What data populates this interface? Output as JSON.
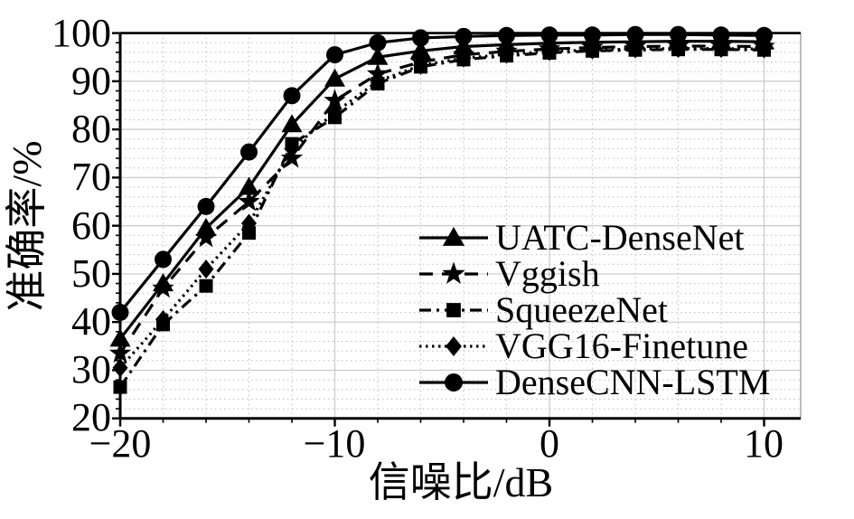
{
  "figure": {
    "background": "#ffffff",
    "axis_color": "#000000",
    "grid_major_color": "#c9c9c9",
    "grid_minor_color": "#bdbdbd"
  },
  "chart_data": {
    "type": "line",
    "title": "",
    "xlabel": "信噪比/dB",
    "ylabel": "准确率/%",
    "xlim": [
      -20,
      10
    ],
    "ylim": [
      20,
      100
    ],
    "xticks": [
      -20,
      -10,
      0,
      10
    ],
    "yticks": [
      20,
      30,
      40,
      50,
      60,
      70,
      80,
      90,
      100
    ],
    "xtick_labels": [
      "−20",
      "−10",
      "0",
      "10"
    ],
    "ytick_labels": [
      "20",
      "30",
      "40",
      "50",
      "60",
      "70",
      "80",
      "90",
      "100"
    ],
    "grid": "major light solid every 10, minor dotted every 2",
    "legend_position": "inside right-center",
    "x": [
      -20,
      -18,
      -16,
      -14,
      -12,
      -10,
      -8,
      -6,
      -4,
      -2,
      0,
      2,
      4,
      6,
      8,
      10
    ],
    "series": [
      {
        "name": "UATC-DenseNet",
        "marker": "triangle",
        "linestyle": "solid",
        "color": "#000000",
        "values": [
          36.5,
          48,
          59.5,
          68,
          81,
          90.5,
          95,
          96.3,
          97.2,
          97.6,
          97.9,
          98.1,
          98.2,
          98.3,
          98.3,
          98.2
        ]
      },
      {
        "name": "Vggish",
        "marker": "star",
        "linestyle": "dashed",
        "color": "#000000",
        "values": [
          33.5,
          47,
          57.5,
          65,
          74,
          86,
          91.5,
          94,
          95.5,
          96.2,
          96.7,
          97,
          97.2,
          97.3,
          97.3,
          97.2
        ]
      },
      {
        "name": "SqueezeNet",
        "marker": "square",
        "linestyle": "dashdot",
        "color": "#000000",
        "values": [
          26.5,
          39.5,
          47.5,
          58.5,
          77,
          82.5,
          89.5,
          93,
          94.5,
          95.3,
          95.9,
          96.3,
          96.5,
          96.6,
          96.6,
          96.5
        ]
      },
      {
        "name": "VGG16-Finetune",
        "marker": "diamond",
        "linestyle": "dotted",
        "color": "#000000",
        "values": [
          30.5,
          40.5,
          51,
          60.5,
          76,
          83.5,
          90,
          93.3,
          94.8,
          95.6,
          96.2,
          96.5,
          96.7,
          96.8,
          96.8,
          96.7
        ]
      },
      {
        "name": "DenseCNN-LSTM",
        "marker": "circle",
        "linestyle": "solid",
        "color": "#000000",
        "values": [
          42,
          53,
          64,
          75.3,
          87,
          95.5,
          98,
          99,
          99.3,
          99.5,
          99.6,
          99.6,
          99.7,
          99.7,
          99.6,
          99.5
        ]
      }
    ]
  }
}
